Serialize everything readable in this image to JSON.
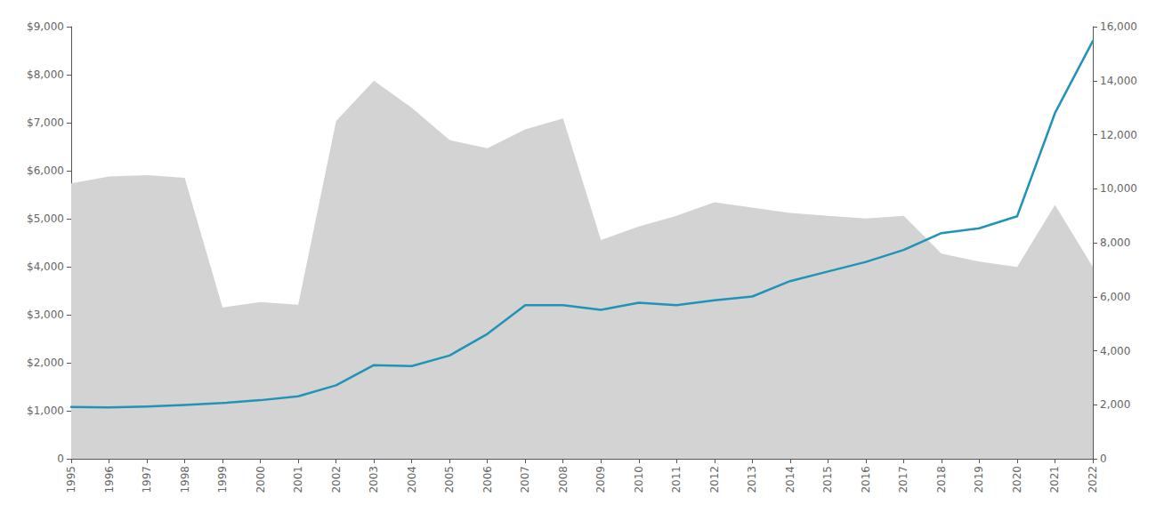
{
  "chart_data": {
    "type": "line",
    "x": [
      1995,
      1996,
      1997,
      1998,
      1999,
      2000,
      2001,
      2002,
      2003,
      2004,
      2005,
      2006,
      2007,
      2008,
      2009,
      2010,
      2011,
      2012,
      2013,
      2014,
      2015,
      2016,
      2017,
      2018,
      2019,
      2020,
      2021,
      2022
    ],
    "xlim": [
      1995,
      2022
    ],
    "xticks": [
      1995,
      1996,
      1997,
      1998,
      1999,
      2000,
      2001,
      2002,
      2003,
      2004,
      2005,
      2006,
      2007,
      2008,
      2009,
      2010,
      2011,
      2012,
      2013,
      2014,
      2015,
      2016,
      2017,
      2018,
      2019,
      2020,
      2021,
      2022
    ],
    "ylim": [
      0,
      9000
    ],
    "yticks": [
      0,
      {
        "value": 1000,
        "label": "$1,000"
      },
      {
        "value": 2000,
        "label": "$2,000"
      },
      {
        "value": 3000,
        "label": "$3,000"
      },
      {
        "value": 4000,
        "label": "$4,000"
      },
      {
        "value": 5000,
        "label": "$5,000"
      },
      {
        "value": 6000,
        "label": "$6,000"
      },
      {
        "value": 7000,
        "label": "$7,000"
      },
      {
        "value": 8000,
        "label": "$8,000"
      },
      {
        "value": 9000,
        "label": "$9,000"
      }
    ],
    "y2lim": [
      0,
      16000
    ],
    "y2ticks": [
      0,
      {
        "value": 2000,
        "label": "2,000"
      },
      {
        "value": 4000,
        "label": "4,000"
      },
      {
        "value": 6000,
        "label": "6,000"
      },
      {
        "value": 8000,
        "label": "8,000"
      },
      {
        "value": 10000,
        "label": "10,000"
      },
      {
        "value": 12000,
        "label": "12,000"
      },
      {
        "value": 14000,
        "label": "14,000"
      },
      {
        "value": 16000,
        "label": "16,000"
      }
    ],
    "grid": false,
    "series": [
      {
        "type": "area",
        "axis": "y2",
        "color": "#d3d3d3",
        "values": [
          10200,
          10450,
          10500,
          10400,
          5600,
          5800,
          5700,
          12500,
          14000,
          13000,
          11800,
          11500,
          12200,
          12600,
          8100,
          8600,
          9000,
          9500,
          9300,
          9100,
          9000,
          8900,
          9000,
          7600,
          7300,
          7100,
          9400,
          7100
        ]
      },
      {
        "type": "line",
        "color": "#2193b8",
        "values": [
          1080,
          1070,
          1090,
          1120,
          1160,
          1220,
          1300,
          1530,
          1950,
          1930,
          2150,
          2600,
          3200,
          3200,
          3100,
          3250,
          3200,
          3300,
          3380,
          3700,
          3900,
          4100,
          4350,
          4700,
          4800,
          5050,
          7200,
          8700
        ]
      }
    ]
  }
}
